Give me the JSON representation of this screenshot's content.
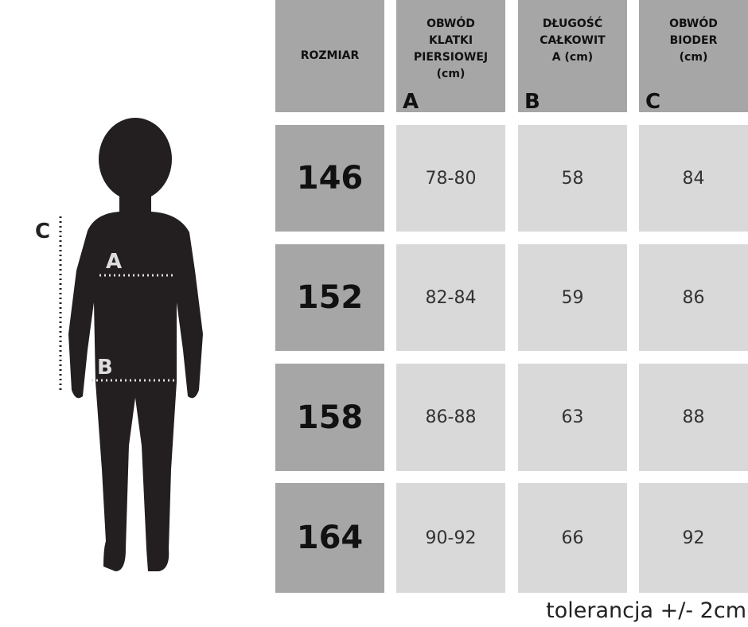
{
  "figure": {
    "labels": {
      "c": "C",
      "a": "A",
      "b": "B"
    }
  },
  "table": {
    "headers": [
      {
        "lines": [
          "ROZMIAR"
        ]
      },
      {
        "lines": [
          "OBWÓD",
          "KLATKI",
          "PIERSIOWEJ",
          "(cm)"
        ],
        "letter": "A"
      },
      {
        "lines": [
          "DŁUGOŚĆ",
          "CAŁKOWIT",
          "A (cm)"
        ],
        "letter": "B"
      },
      {
        "lines": [
          "OBWÓD",
          "BIODER",
          "(cm)"
        ],
        "letter": "C"
      }
    ],
    "rows": [
      [
        "146",
        "78-80",
        "58",
        "84"
      ],
      [
        "152",
        "82-84",
        "59",
        "86"
      ],
      [
        "158",
        "86-88",
        "63",
        "88"
      ],
      [
        "164",
        "90-92",
        "66",
        "92"
      ]
    ]
  },
  "note": "tolerancja +/- 2cm"
}
